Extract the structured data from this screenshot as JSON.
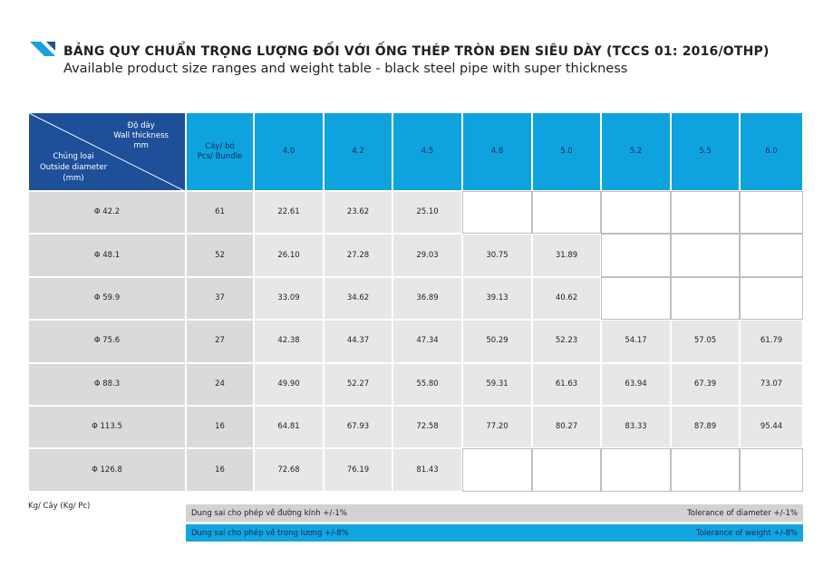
{
  "header": {
    "title": "BẢNG QUY CHUẨN TRỌNG LƯỢNG ĐỐI VỚI ỐNG THÉP TRÒN ĐEN SIÊU DÀY (TCCS 01: 2016/OTHP)",
    "subtitle": "Available product size ranges and weight table - black steel pipe with super thickness"
  },
  "table": {
    "corner": {
      "top": [
        "Độ dày",
        "Wall thickness",
        "mm"
      ],
      "bottom": [
        "Chủng loại",
        "Outside diameter",
        "(mm)"
      ]
    },
    "count_header": [
      "Cây/ bó",
      "Pcs/ Bundle"
    ],
    "thickness": [
      "4.0",
      "4.2",
      "4.5",
      "4.8",
      "5.0",
      "5.2",
      "5.5",
      "6.0"
    ],
    "rows": [
      {
        "size": "Φ 42.2",
        "count": "61",
        "weights": [
          "22.61",
          "23.62",
          "25.10",
          null,
          null,
          null,
          null,
          null
        ]
      },
      {
        "size": "Φ 48.1",
        "count": "52",
        "weights": [
          "26.10",
          "27.28",
          "29.03",
          "30.75",
          "31.89",
          null,
          null,
          null
        ]
      },
      {
        "size": "Φ 59.9",
        "count": "37",
        "weights": [
          "33.09",
          "34.62",
          "36.89",
          "39.13",
          "40.62",
          null,
          null,
          null
        ]
      },
      {
        "size": "Φ 75.6",
        "count": "27",
        "weights": [
          "42.38",
          "44.37",
          "47.34",
          "50.29",
          "52.23",
          "54.17",
          "57.05",
          "61.79"
        ]
      },
      {
        "size": "Φ 88.3",
        "count": "24",
        "weights": [
          "49.90",
          "52.27",
          "55.80",
          "59.31",
          "61.63",
          "63.94",
          "67.39",
          "73.07"
        ]
      },
      {
        "size": "Φ 113.5",
        "count": "16",
        "weights": [
          "64.81",
          "67.93",
          "72.58",
          "77.20",
          "80.27",
          "83.33",
          "87.89",
          "95.44"
        ]
      },
      {
        "size": "Φ 126.8",
        "count": "16",
        "weights": [
          "72.68",
          "76.19",
          "81.43",
          null,
          null,
          null,
          null,
          null
        ]
      }
    ]
  },
  "footer": {
    "unit": "Kg/ Cây (Kg/ Pc)",
    "notes": [
      {
        "vi": "Dung sai cho phép về đường kính +/-1%",
        "en": "Tolerance of diameter +/-1%"
      },
      {
        "vi": "Dung sai cho phép về trọng lượng +/-8%",
        "en": "Tolerance of weight +/-8%"
      }
    ]
  }
}
